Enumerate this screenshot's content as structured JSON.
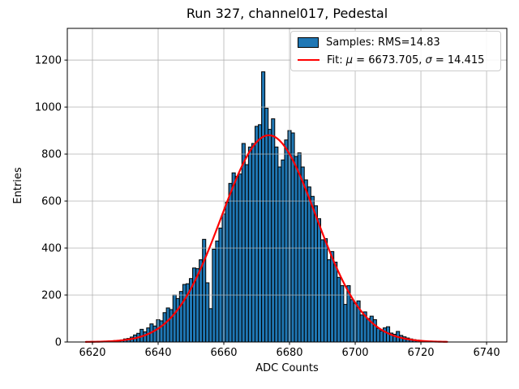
{
  "figure": {
    "title": "Run 327, channel017, Pedestal",
    "xlabel": "ADC Counts",
    "ylabel": "Entries"
  },
  "legend": {
    "samples_label": "Samples: RMS=14.83",
    "fit": {
      "prefix": "Fit: ",
      "mu_symbol": "μ",
      "mu_value": " = 6673.705, ",
      "sigma_symbol": "σ",
      "sigma_value": " = 14.415"
    },
    "sample_color": "#1f77b4",
    "fit_color": "#ff0000"
  },
  "chart_data": {
    "type": "bar",
    "title": "Run 327, channel017, Pedestal",
    "xlabel": "ADC Counts",
    "ylabel": "Entries",
    "bin_center_start": 6619,
    "bin_width": 1,
    "counts": [
      1,
      0,
      1,
      1,
      2,
      3,
      3,
      4,
      6,
      7,
      9,
      13,
      15,
      21,
      30,
      37,
      54,
      43,
      60,
      77,
      68,
      95,
      90,
      125,
      145,
      138,
      200,
      185,
      215,
      245,
      248,
      270,
      315,
      312,
      350,
      437,
      252,
      142,
      395,
      430,
      485,
      545,
      595,
      675,
      720,
      705,
      715,
      845,
      755,
      830,
      845,
      918,
      925,
      1150,
      995,
      905,
      950,
      830,
      745,
      775,
      860,
      900,
      890,
      790,
      805,
      745,
      690,
      660,
      620,
      580,
      525,
      435,
      440,
      350,
      385,
      340,
      275,
      240,
      160,
      240,
      180,
      165,
      175,
      115,
      128,
      100,
      110,
      95,
      58,
      47,
      60,
      65,
      38,
      33,
      45,
      28,
      22,
      17,
      13,
      10,
      8,
      6,
      4,
      3,
      2,
      2,
      1,
      1,
      1
    ],
    "fit": {
      "mu": 6673.705,
      "sigma": 14.415,
      "amplitude": 880,
      "x_min": 6618,
      "x_max": 6728,
      "color": "#ff0000",
      "line_width": 2.2
    },
    "x_ticks": [
      6620,
      6640,
      6660,
      6680,
      6700,
      6720,
      6740
    ],
    "y_ticks": [
      0,
      200,
      400,
      600,
      800,
      1000,
      1200
    ],
    "xlim": [
      6612.35,
      6746.16
    ],
    "ylim": [
      0,
      1335
    ],
    "grid": true,
    "legend_position": "upper right",
    "bar_fill": "#1f77b4",
    "bar_edge": "#000000",
    "grid_color": "#b0b0b0",
    "spine_color": "#000000",
    "tick_label_color": "#000000"
  }
}
